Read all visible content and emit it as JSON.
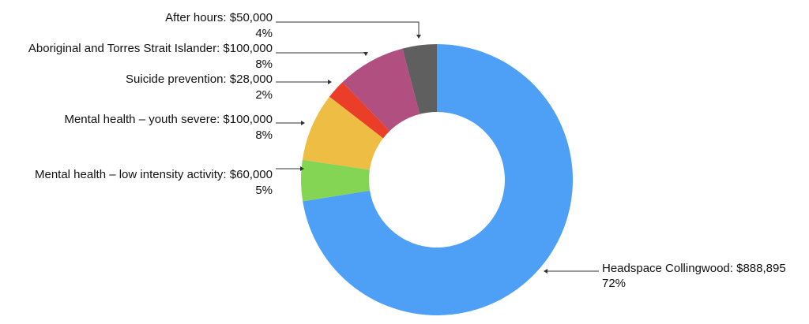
{
  "chart_data": {
    "type": "pie",
    "donut": true,
    "start_angle_deg": 0,
    "direction": "clockwise",
    "slices": [
      {
        "name": "Headspace Collingwood",
        "amount": "$888,895",
        "value": 888895,
        "percent": "72%",
        "color": "#4da0f5"
      },
      {
        "name": "Mental health – low intensity activity",
        "amount": "$60,000",
        "value": 60000,
        "percent": "5%",
        "color": "#84d553"
      },
      {
        "name": "Mental health – youth severe",
        "amount": "$100,000",
        "value": 100000,
        "percent": "8%",
        "color": "#eebd43"
      },
      {
        "name": "Suicide prevention",
        "amount": "$28,000",
        "value": 28000,
        "percent": "2%",
        "color": "#ea3e28"
      },
      {
        "name": "Aboriginal and Torres Strait Islander",
        "amount": "$100,000",
        "value": 100000,
        "percent": "8%",
        "color": "#b14f80"
      },
      {
        "name": "After hours",
        "amount": "$50,000",
        "value": 50000,
        "percent": "4%",
        "color": "#5f5f5f"
      }
    ]
  }
}
